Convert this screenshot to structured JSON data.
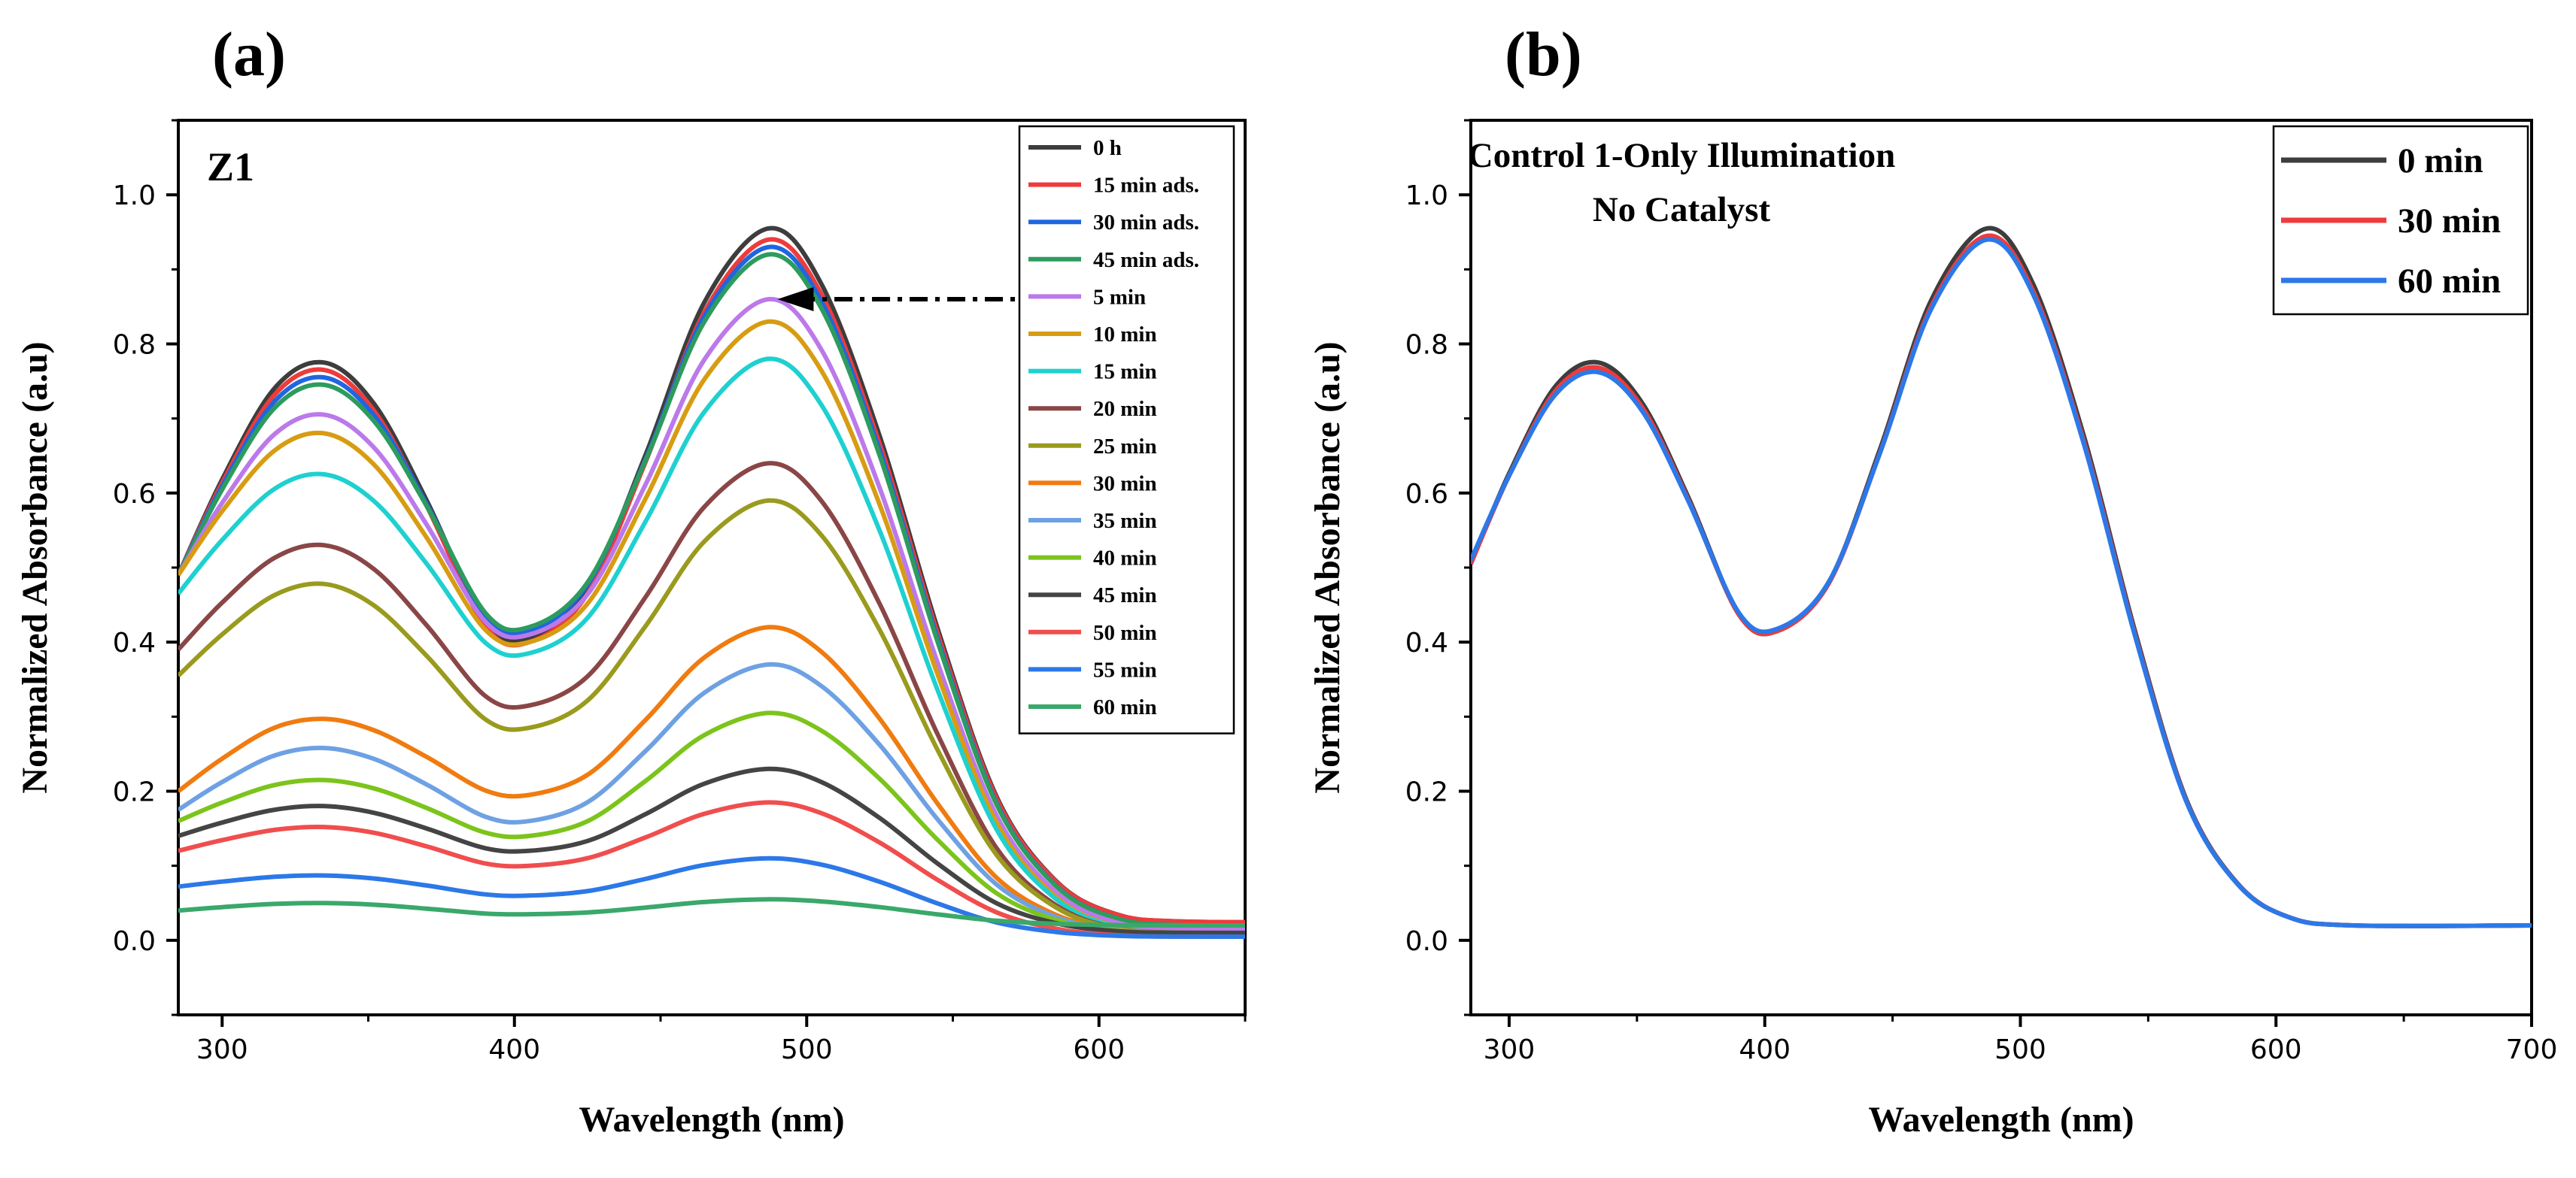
{
  "chart_data": [
    {
      "panel": "(a)",
      "type": "line",
      "annotation": "Z1",
      "xlabel": "Wavelength (nm)",
      "ylabel": "Normalized Absorbance (a.u)",
      "xlim": [
        285,
        650
      ],
      "ylim": [
        -0.1,
        1.1
      ],
      "xticks": [
        300,
        400,
        500,
        600
      ],
      "yticks": [
        0.0,
        0.2,
        0.4,
        0.6,
        0.8,
        1.0
      ],
      "xtick_labels": [
        "300",
        "400",
        "500",
        "600"
      ],
      "ytick_labels": [
        "0.0",
        "0.2",
        "0.4",
        "0.6",
        "0.8",
        "1.0"
      ],
      "legend_position": "top-right",
      "arrow": {
        "from": [
          580,
          0.86
        ],
        "to": [
          490,
          0.86
        ],
        "style": "dash-dot",
        "color": "#000000"
      },
      "series": [
        {
          "name": "0 h",
          "color": "#3d3d3d",
          "start": 0.49,
          "peak1": 0.775,
          "valley": 0.405,
          "peak2": 0.955,
          "tail": 0.025
        },
        {
          "name": "15 min ads.",
          "color": "#ee3b3b",
          "start": 0.49,
          "peak1": 0.765,
          "valley": 0.4,
          "peak2": 0.94,
          "tail": 0.025
        },
        {
          "name": "30 min ads.",
          "color": "#1f66e0",
          "start": 0.49,
          "peak1": 0.755,
          "valley": 0.415,
          "peak2": 0.93,
          "tail": 0.02
        },
        {
          "name": "45 min ads.",
          "color": "#2e9b5e",
          "start": 0.49,
          "peak1": 0.745,
          "valley": 0.42,
          "peak2": 0.92,
          "tail": 0.02
        },
        {
          "name": "5 min",
          "color": "#bb79ea",
          "start": 0.49,
          "peak1": 0.705,
          "valley": 0.41,
          "peak2": 0.86,
          "tail": 0.015
        },
        {
          "name": "10 min",
          "color": "#d79c12",
          "start": 0.49,
          "peak1": 0.68,
          "valley": 0.4,
          "peak2": 0.83,
          "tail": 0.01
        },
        {
          "name": "15 min",
          "color": "#1fd0d0",
          "start": 0.465,
          "peak1": 0.625,
          "valley": 0.385,
          "peak2": 0.78,
          "tail": 0.01
        },
        {
          "name": "20 min",
          "color": "#8a4646",
          "start": 0.39,
          "peak1": 0.53,
          "valley": 0.315,
          "peak2": 0.64,
          "tail": 0.01
        },
        {
          "name": "25 min",
          "color": "#9a9a1e",
          "start": 0.355,
          "peak1": 0.478,
          "valley": 0.285,
          "peak2": 0.59,
          "tail": 0.01
        },
        {
          "name": "30 min",
          "color": "#f07b10",
          "start": 0.2,
          "peak1": 0.297,
          "valley": 0.195,
          "peak2": 0.42,
          "tail": 0.01
        },
        {
          "name": "35 min",
          "color": "#6ea1e3",
          "start": 0.175,
          "peak1": 0.258,
          "valley": 0.16,
          "peak2": 0.37,
          "tail": 0.01
        },
        {
          "name": "40 min",
          "color": "#7cc41c",
          "start": 0.16,
          "peak1": 0.215,
          "valley": 0.14,
          "peak2": 0.305,
          "tail": 0.01
        },
        {
          "name": "45 min",
          "color": "#444444",
          "start": 0.14,
          "peak1": 0.18,
          "valley": 0.12,
          "peak2": 0.23,
          "tail": 0.01
        },
        {
          "name": "50 min",
          "color": "#f04e4e",
          "start": 0.12,
          "peak1": 0.152,
          "valley": 0.1,
          "peak2": 0.185,
          "tail": 0.005
        },
        {
          "name": "55 min",
          "color": "#2c78e8",
          "start": 0.072,
          "peak1": 0.087,
          "valley": 0.06,
          "peak2": 0.11,
          "tail": 0.005
        },
        {
          "name": "60 min",
          "color": "#3aa86a",
          "start": 0.04,
          "peak1": 0.05,
          "valley": 0.035,
          "peak2": 0.055,
          "tail": 0.02
        }
      ]
    },
    {
      "panel": "(b)",
      "type": "line",
      "annotation": [
        "Control 1-Only Illumination",
        "No Catalyst"
      ],
      "xlabel": "Wavelength (nm)",
      "ylabel": "Normalized Absorbance (a.u)",
      "xlim": [
        285,
        700
      ],
      "ylim": [
        -0.1,
        1.1
      ],
      "xticks": [
        300,
        400,
        500,
        600,
        700
      ],
      "yticks": [
        0.0,
        0.2,
        0.4,
        0.6,
        0.8,
        1.0
      ],
      "xtick_labels": [
        "300",
        "400",
        "500",
        "600",
        "700"
      ],
      "ytick_labels": [
        "0.0",
        "0.2",
        "0.4",
        "0.6",
        "0.8",
        "1.0"
      ],
      "legend_position": "top-right",
      "series": [
        {
          "name": "0 min",
          "color": "#3d3d3d",
          "start": 0.505,
          "peak1": 0.775,
          "valley": 0.415,
          "peak2": 0.955,
          "tail": 0.02
        },
        {
          "name": "30 min",
          "color": "#ee3b3b",
          "start": 0.505,
          "peak1": 0.768,
          "valley": 0.415,
          "peak2": 0.945,
          "tail": 0.02
        },
        {
          "name": "60 min",
          "color": "#2c78e8",
          "start": 0.51,
          "peak1": 0.762,
          "valley": 0.418,
          "peak2": 0.94,
          "tail": 0.02
        }
      ]
    }
  ]
}
